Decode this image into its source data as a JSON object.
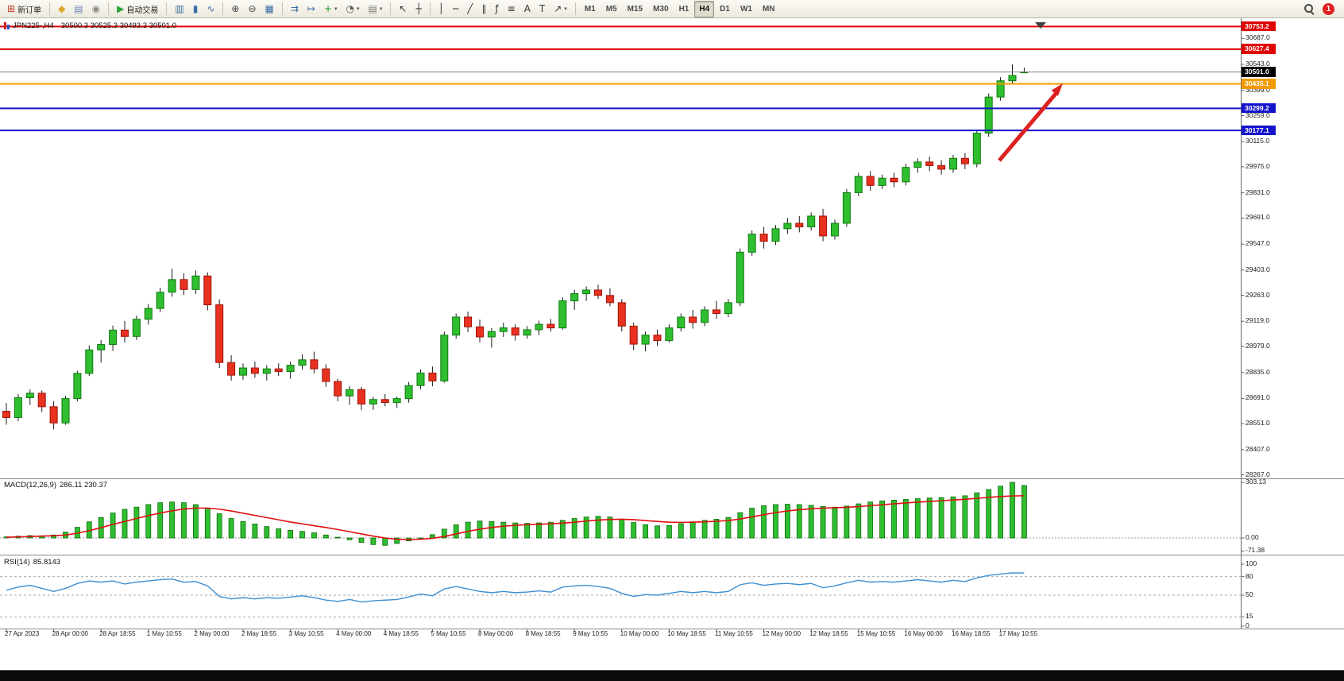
{
  "toolbar": {
    "active_timeframe": "H4",
    "notification_count": "1",
    "groups": [
      {
        "items": [
          {
            "id": "new-order",
            "label": "新订单",
            "glyph": "⊞",
            "color": "#c0392b"
          }
        ]
      },
      {
        "items": [
          {
            "id": "charts",
            "glyph": "◆",
            "color": "#d9a62e"
          },
          {
            "id": "print",
            "glyph": "▤",
            "color": "#6b86b5"
          },
          {
            "id": "news",
            "glyph": "◉",
            "color": "#8a8a8a"
          }
        ]
      },
      {
        "items": [
          {
            "id": "autotrading",
            "label": "自动交易",
            "glyph": "▶",
            "color": "#27a338"
          }
        ]
      },
      {
        "items": [
          {
            "id": "bar-chart",
            "glyph": "▥",
            "color": "#3a6ea5"
          },
          {
            "id": "candlestick-chart",
            "glyph": "▮",
            "color": "#3a6ea5"
          },
          {
            "id": "line-chart",
            "glyph": "∿",
            "color": "#3a6ea5"
          }
        ]
      },
      {
        "items": [
          {
            "id": "zoom-in",
            "glyph": "⊕",
            "color": "#444444"
          },
          {
            "id": "zoom-out",
            "glyph": "⊖",
            "color": "#444444"
          },
          {
            "id": "tile-windows",
            "glyph": "▦",
            "color": "#3a6ea5"
          }
        ]
      },
      {
        "items": [
          {
            "id": "auto-scroll",
            "glyph": "⇉",
            "color": "#3a6ea5"
          },
          {
            "id": "chart-shift",
            "glyph": "↦",
            "color": "#3a6ea5"
          },
          {
            "id": "indicators",
            "glyph": "+",
            "color": "#1f9d28",
            "dropdown": true
          },
          {
            "id": "periods",
            "glyph": "◔",
            "color": "#555555",
            "dropdown": true
          },
          {
            "id": "templates",
            "glyph": "▤",
            "color": "#777777",
            "dropdown": true
          }
        ]
      },
      {
        "items": [
          {
            "id": "cursor",
            "glyph": "↖",
            "color": "#333333"
          },
          {
            "id": "crosshair",
            "glyph": "┼",
            "color": "#333333"
          }
        ]
      },
      {
        "items": [
          {
            "id": "vertical-line",
            "glyph": "│",
            "color": "#333333"
          },
          {
            "id": "horizontal-line",
            "glyph": "─",
            "color": "#333333"
          },
          {
            "id": "trendline",
            "glyph": "╱",
            "color": "#333333"
          },
          {
            "id": "equidistant-channel",
            "glyph": "∥",
            "color": "#333333"
          },
          {
            "id": "fibonacci",
            "glyph": "ƒ",
            "color": "#333333"
          },
          {
            "id": "shapes",
            "glyph": "≡",
            "color": "#333333"
          },
          {
            "id": "text",
            "glyph": "A",
            "color": "#333333"
          },
          {
            "id": "text-label",
            "glyph": "T",
            "color": "#333333"
          },
          {
            "id": "arrows",
            "glyph": "↗",
            "color": "#333333",
            "dropdown": true
          }
        ]
      },
      {
        "items": [
          {
            "id": "timeframe-m1",
            "label": "M1"
          },
          {
            "id": "timeframe-m5",
            "label": "M5"
          },
          {
            "id": "timeframe-m15",
            "label": "M15"
          },
          {
            "id": "timeframe-m30",
            "label": "M30"
          },
          {
            "id": "timeframe-h1",
            "label": "H1"
          },
          {
            "id": "timeframe-h4",
            "label": "H4"
          },
          {
            "id": "timeframe-d1",
            "label": "D1"
          },
          {
            "id": "timeframe-w1",
            "label": "W1"
          },
          {
            "id": "timeframe-mn",
            "label": "MN"
          }
        ]
      }
    ],
    "right_items": [
      {
        "id": "search"
      },
      {
        "id": "notifications",
        "label": "1"
      }
    ]
  },
  "chart_data": {
    "type": "candlestick",
    "symbol": "JPN225-",
    "timeframe": "H4",
    "title_symbol": "JPN225-,H4",
    "ohlc_text": "30500.3 30525.3 30493.3 30501.0",
    "price_axis": {
      "min": 28230,
      "max": 30790,
      "ticks": [
        "30687.0",
        "30543.0",
        "30399.0",
        "30259.0",
        "30115.0",
        "29975.0",
        "29831.0",
        "29691.0",
        "29547.0",
        "29403.0",
        "29263.0",
        "29119.0",
        "28979.0",
        "28835.0",
        "28691.0",
        "28551.0",
        "28407.0",
        "28267.0"
      ]
    },
    "levels": [
      {
        "price": 30753.2,
        "label": "30753.2",
        "color": "#e00000"
      },
      {
        "price": 30627.4,
        "label": "30627.4",
        "color": "#e00000"
      },
      {
        "price": 30435.1,
        "label": "30435.1",
        "color": "#f29b00"
      },
      {
        "price": 30299.2,
        "label": "30299.2",
        "color": "#1414cc"
      },
      {
        "price": 30177.1,
        "label": "30177.1",
        "color": "#1414cc"
      }
    ],
    "bid": {
      "price": 30501.0,
      "label": "30501.0",
      "bg": "#000000"
    },
    "annotations": [
      {
        "type": "arrow",
        "direction": "up-right",
        "color": "#dd2020"
      }
    ],
    "x_label_step": 4,
    "x_labels": [
      "27 Apr 2023",
      "28 Apr 00:00",
      "28 Apr 18:55",
      "1 May 10:55",
      "2 May 00:00",
      "2 May 18:55",
      "3 May 10:55",
      "4 May 00:00",
      "4 May 18:55",
      "5 May 10:55",
      "8 May 00:00",
      "8 May 18:55",
      "9 May 10:55",
      "10 May 00:00",
      "10 May 18:55",
      "11 May 10:55",
      "12 May 00:00",
      "12 May 18:55",
      "15 May 10:55",
      "16 May 00:00",
      "16 May 18:55",
      "17 May 10:55"
    ],
    "colors": {
      "up": "#2fbe2f",
      "up_border": "#0f7a0f",
      "down": "#e8321f",
      "down_border": "#a01208",
      "wick": "#1a1a1a"
    },
    "candles": [
      [
        28620,
        28665,
        28545,
        28585
      ],
      [
        28585,
        28715,
        28565,
        28695
      ],
      [
        28695,
        28740,
        28655,
        28720
      ],
      [
        28720,
        28735,
        28615,
        28645
      ],
      [
        28645,
        28675,
        28520,
        28555
      ],
      [
        28555,
        28705,
        28545,
        28690
      ],
      [
        28690,
        28845,
        28675,
        28830
      ],
      [
        28830,
        28985,
        28815,
        28960
      ],
      [
        28960,
        29015,
        28890,
        28990
      ],
      [
        28990,
        29095,
        28955,
        29070
      ],
      [
        29070,
        29120,
        29000,
        29035
      ],
      [
        29035,
        29150,
        29015,
        29130
      ],
      [
        29130,
        29215,
        29100,
        29190
      ],
      [
        29190,
        29305,
        29170,
        29280
      ],
      [
        29280,
        29410,
        29255,
        29350
      ],
      [
        29350,
        29385,
        29265,
        29295
      ],
      [
        29295,
        29400,
        29270,
        29370
      ],
      [
        29370,
        29390,
        29180,
        29210
      ],
      [
        29210,
        29240,
        28860,
        28890
      ],
      [
        28890,
        28930,
        28790,
        28820
      ],
      [
        28820,
        28885,
        28795,
        28860
      ],
      [
        28860,
        28895,
        28805,
        28830
      ],
      [
        28830,
        28875,
        28790,
        28855
      ],
      [
        28855,
        28885,
        28815,
        28840
      ],
      [
        28840,
        28895,
        28800,
        28875
      ],
      [
        28875,
        28935,
        28850,
        28905
      ],
      [
        28905,
        28950,
        28830,
        28855
      ],
      [
        28855,
        28880,
        28755,
        28785
      ],
      [
        28785,
        28800,
        28675,
        28705
      ],
      [
        28705,
        28760,
        28655,
        28740
      ],
      [
        28740,
        28755,
        28625,
        28660
      ],
      [
        28660,
        28700,
        28628,
        28685
      ],
      [
        28685,
        28715,
        28648,
        28668
      ],
      [
        28668,
        28702,
        28638,
        28690
      ],
      [
        28690,
        28782,
        28668,
        28762
      ],
      [
        28762,
        28852,
        28742,
        28832
      ],
      [
        28832,
        28868,
        28758,
        28788
      ],
      [
        28788,
        29062,
        28778,
        29042
      ],
      [
        29042,
        29162,
        29022,
        29142
      ],
      [
        29142,
        29172,
        29058,
        29088
      ],
      [
        29088,
        29128,
        29002,
        29032
      ],
      [
        29032,
        29082,
        28972,
        29062
      ],
      [
        29062,
        29112,
        29032,
        29082
      ],
      [
        29082,
        29102,
        29012,
        29042
      ],
      [
        29042,
        29092,
        29022,
        29072
      ],
      [
        29072,
        29122,
        29042,
        29102
      ],
      [
        29102,
        29132,
        29062,
        29082
      ],
      [
        29082,
        29252,
        29072,
        29232
      ],
      [
        29232,
        29292,
        29182,
        29272
      ],
      [
        29272,
        29312,
        29232,
        29292
      ],
      [
        29292,
        29322,
        29242,
        29262
      ],
      [
        29262,
        29302,
        29202,
        29222
      ],
      [
        29222,
        29242,
        29062,
        29092
      ],
      [
        29092,
        29112,
        28958,
        28992
      ],
      [
        28992,
        29062,
        28952,
        29042
      ],
      [
        29042,
        29072,
        28982,
        29012
      ],
      [
        29012,
        29102,
        29002,
        29082
      ],
      [
        29082,
        29162,
        29062,
        29142
      ],
      [
        29142,
        29182,
        29078,
        29112
      ],
      [
        29112,
        29202,
        29092,
        29182
      ],
      [
        29182,
        29232,
        29132,
        29162
      ],
      [
        29162,
        29242,
        29142,
        29222
      ],
      [
        29222,
        29522,
        29202,
        29502
      ],
      [
        29502,
        29622,
        29482,
        29602
      ],
      [
        29602,
        29642,
        29522,
        29562
      ],
      [
        29562,
        29652,
        29542,
        29632
      ],
      [
        29632,
        29692,
        29602,
        29662
      ],
      [
        29662,
        29702,
        29612,
        29642
      ],
      [
        29642,
        29722,
        29622,
        29702
      ],
      [
        29702,
        29742,
        29562,
        29592
      ],
      [
        29592,
        29682,
        29572,
        29662
      ],
      [
        29662,
        29852,
        29642,
        29832
      ],
      [
        29832,
        29942,
        29812,
        29922
      ],
      [
        29922,
        29952,
        29842,
        29872
      ],
      [
        29872,
        29932,
        29852,
        29912
      ],
      [
        29912,
        29942,
        29862,
        29892
      ],
      [
        29892,
        29992,
        29872,
        29972
      ],
      [
        29972,
        30022,
        29942,
        30002
      ],
      [
        30002,
        30032,
        29952,
        29982
      ],
      [
        29982,
        30012,
        29932,
        29962
      ],
      [
        29962,
        30042,
        29942,
        30022
      ],
      [
        30022,
        30052,
        29962,
        29992
      ],
      [
        29992,
        30182,
        29972,
        30162
      ],
      [
        30162,
        30382,
        30142,
        30362
      ],
      [
        30362,
        30472,
        30342,
        30452
      ],
      [
        30452,
        30543,
        30432,
        30482
      ],
      [
        30500.3,
        30525.3,
        30493.3,
        30501.0
      ]
    ],
    "indicators": {
      "macd": {
        "name": "MACD(12,26,9)",
        "values_text": "286.11 230.37",
        "scale": [
          "303.13",
          "0.00",
          "-71.38"
        ],
        "histogram_color": "#2fbe2f",
        "signal_color": "#e01010",
        "histogram": [
          6,
          10,
          13,
          12,
          16,
          32,
          58,
          88,
          112,
          136,
          156,
          168,
          182,
          192,
          196,
          192,
          182,
          162,
          132,
          106,
          90,
          76,
          62,
          50,
          42,
          36,
          28,
          16,
          4,
          -10,
          -24,
          -36,
          -40,
          -30,
          -16,
          0,
          18,
          48,
          72,
          86,
          92,
          90,
          86,
          82,
          80,
          82,
          86,
          96,
          106,
          114,
          118,
          114,
          100,
          84,
          72,
          66,
          68,
          78,
          88,
          96,
          102,
          112,
          138,
          162,
          176,
          182,
          184,
          182,
          178,
          172,
          168,
          174,
          186,
          196,
          202,
          206,
          210,
          214,
          218,
          220,
          224,
          230,
          246,
          264,
          282,
          303.13,
          286.11
        ],
        "signal": [
          4,
          6,
          8,
          10,
          12,
          16,
          26,
          40,
          56,
          74,
          90,
          106,
          122,
          136,
          148,
          158,
          163,
          163,
          157,
          147,
          135,
          123,
          111,
          99,
          87,
          77,
          67,
          57,
          46,
          34,
          22,
          10,
          0,
          -7,
          -9,
          -7,
          -2,
          8,
          22,
          36,
          48,
          57,
          64,
          69,
          72,
          75,
          77,
          81,
          86,
          92,
          97,
          101,
          102,
          100,
          95,
          90,
          86,
          85,
          86,
          88,
          91,
          95,
          103,
          115,
          127,
          138,
          147,
          154,
          159,
          163,
          165,
          167,
          171,
          176,
          181,
          186,
          191,
          195,
          199,
          203,
          207,
          211,
          216,
          221,
          226,
          229,
          230.37
        ]
      },
      "rsi": {
        "name": "RSI(14)",
        "value_text": "85.8143",
        "scale": [
          "100",
          "80",
          "50",
          "15",
          "0"
        ],
        "levels": [
          80,
          50,
          15
        ],
        "line_color": "#3f8fd2",
        "values": [
          58,
          63,
          66,
          61,
          56,
          61,
          69,
          73,
          71,
          73,
          68,
          71,
          73,
          75,
          76,
          71,
          72,
          65,
          48,
          44,
          46,
          44,
          46,
          45,
          47,
          49,
          46,
          42,
          40,
          43,
          39,
          41,
          42,
          43,
          47,
          52,
          49,
          60,
          64,
          60,
          56,
          54,
          56,
          54,
          55,
          57,
          55,
          63,
          65,
          66,
          64,
          61,
          53,
          48,
          51,
          50,
          53,
          56,
          54,
          56,
          54,
          56,
          67,
          70,
          66,
          68,
          69,
          67,
          69,
          62,
          65,
          70,
          74,
          71,
          72,
          71,
          73,
          75,
          73,
          71,
          74,
          72,
          78,
          82,
          84,
          86,
          85.8143
        ]
      }
    }
  }
}
